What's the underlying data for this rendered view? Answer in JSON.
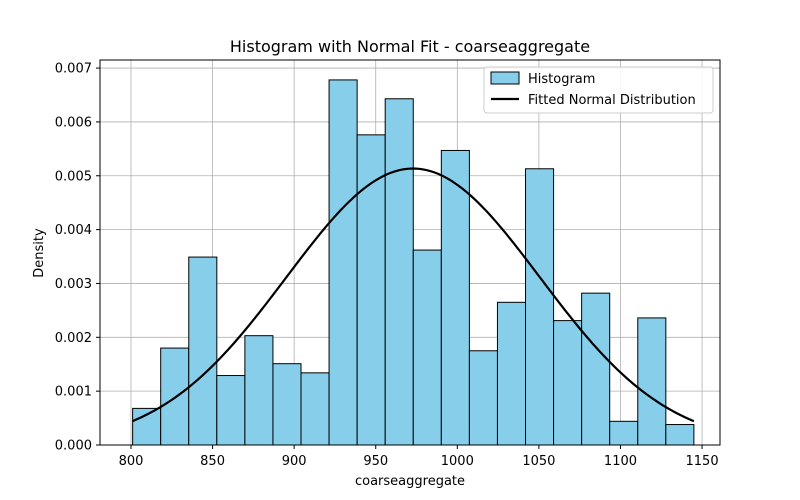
{
  "chart_data": {
    "type": "bar",
    "title": "Histogram with Normal Fit - coarseaggregate",
    "xlabel": "coarseaggregate",
    "ylabel": "Density",
    "xlim": [
      781,
      1161
    ],
    "ylim": [
      0,
      0.00715
    ],
    "xticks": [
      800,
      850,
      900,
      950,
      1000,
      1050,
      1100,
      1150
    ],
    "yticks": [
      0.0,
      0.001,
      0.002,
      0.003,
      0.004,
      0.005,
      0.006,
      0.007
    ],
    "ytick_labels": [
      "0.000",
      "0.001",
      "0.002",
      "0.003",
      "0.004",
      "0.005",
      "0.006",
      "0.007"
    ],
    "grid": true,
    "legend_position": "top-right",
    "series": [
      {
        "name": "Histogram",
        "kind": "histogram",
        "color": "#87CEEB",
        "edge_color": "#000000",
        "bins": [
          {
            "x0": 801.0,
            "x1": 818.2,
            "value": 0.00068
          },
          {
            "x0": 818.2,
            "x1": 835.4,
            "value": 0.0018
          },
          {
            "x0": 835.4,
            "x1": 852.6,
            "value": 0.00349
          },
          {
            "x0": 852.6,
            "x1": 869.8,
            "value": 0.00129
          },
          {
            "x0": 869.8,
            "x1": 887.0,
            "value": 0.00203
          },
          {
            "x0": 887.0,
            "x1": 904.2,
            "value": 0.00151
          },
          {
            "x0": 904.2,
            "x1": 921.4,
            "value": 0.00134
          },
          {
            "x0": 921.4,
            "x1": 938.6,
            "value": 0.00678
          },
          {
            "x0": 938.6,
            "x1": 955.8,
            "value": 0.00576
          },
          {
            "x0": 955.8,
            "x1": 973.0,
            "value": 0.00643
          },
          {
            "x0": 973.0,
            "x1": 990.2,
            "value": 0.00362
          },
          {
            "x0": 990.2,
            "x1": 1007.4,
            "value": 0.00547
          },
          {
            "x0": 1007.4,
            "x1": 1024.6,
            "value": 0.00175
          },
          {
            "x0": 1024.6,
            "x1": 1041.8,
            "value": 0.00265
          },
          {
            "x0": 1041.8,
            "x1": 1059.0,
            "value": 0.00513
          },
          {
            "x0": 1059.0,
            "x1": 1076.2,
            "value": 0.00231
          },
          {
            "x0": 1076.2,
            "x1": 1093.4,
            "value": 0.00282
          },
          {
            "x0": 1093.4,
            "x1": 1110.6,
            "value": 0.00044
          },
          {
            "x0": 1110.6,
            "x1": 1127.8,
            "value": 0.00236
          },
          {
            "x0": 1127.8,
            "x1": 1145.0,
            "value": 0.00038
          }
        ]
      },
      {
        "name": "Fitted Normal Distribution",
        "kind": "line",
        "color": "#000000",
        "mean": 972.9,
        "std": 77.7,
        "x_range": [
          801.0,
          1145.0
        ]
      }
    ]
  }
}
